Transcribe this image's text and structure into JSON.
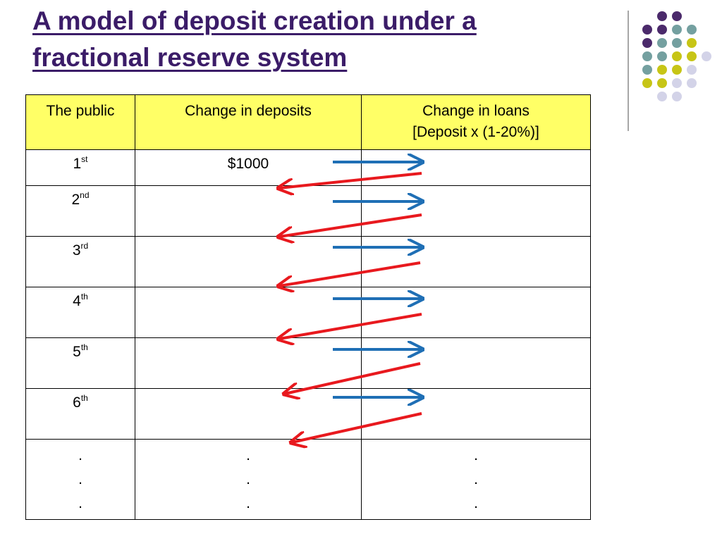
{
  "title": {
    "line1": "A model of deposit creation under a",
    "line2": "fractional reserve system"
  },
  "table": {
    "headers": [
      "The public",
      "Change in deposits",
      "Change in loans",
      "[Deposit x (1-20%)]"
    ],
    "rows": [
      {
        "num": "1",
        "suffix": "st",
        "deposit": "$1000",
        "loan": ""
      },
      {
        "num": "2",
        "suffix": "nd",
        "deposit": "",
        "loan": ""
      },
      {
        "num": "3",
        "suffix": "rd",
        "deposit": "",
        "loan": ""
      },
      {
        "num": "4",
        "suffix": "th",
        "deposit": "",
        "loan": ""
      },
      {
        "num": "5",
        "suffix": "th",
        "deposit": "",
        "loan": ""
      },
      {
        "num": "6",
        "suffix": "th",
        "deposit": "",
        "loan": ""
      }
    ],
    "ellipsis": "."
  },
  "colors": {
    "title": "#3b1c68",
    "header_bg": "#ffff66",
    "blue_arrow": "#1f6fb5",
    "red_arrow": "#e8191e",
    "dot_purple": "#4b2a6b",
    "dot_teal": "#74a0a0",
    "dot_yellow": "#c7c516",
    "dot_lavender": "#d3d3e8"
  }
}
